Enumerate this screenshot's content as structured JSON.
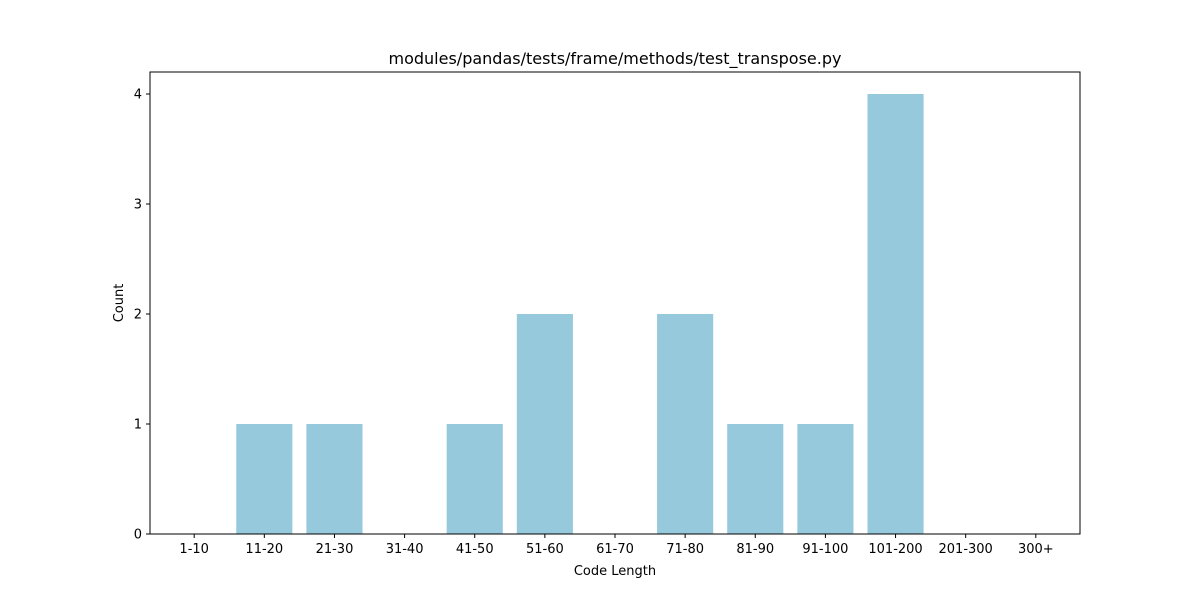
{
  "chart_data": {
    "type": "bar",
    "title": "modules/pandas/tests/frame/methods/test_transpose.py",
    "xlabel": "Code Length",
    "ylabel": "Count",
    "categories": [
      "1-10",
      "11-20",
      "21-30",
      "31-40",
      "41-50",
      "51-60",
      "61-70",
      "71-80",
      "81-90",
      "91-100",
      "101-200",
      "201-300",
      "300+"
    ],
    "values": [
      0,
      1,
      1,
      0,
      1,
      2,
      0,
      2,
      1,
      1,
      4,
      0,
      0
    ],
    "ylim": [
      0,
      4.2
    ],
    "yticks": [
      0,
      1,
      2,
      3,
      4
    ],
    "grid": false,
    "bar_color": "#96c9dc"
  }
}
